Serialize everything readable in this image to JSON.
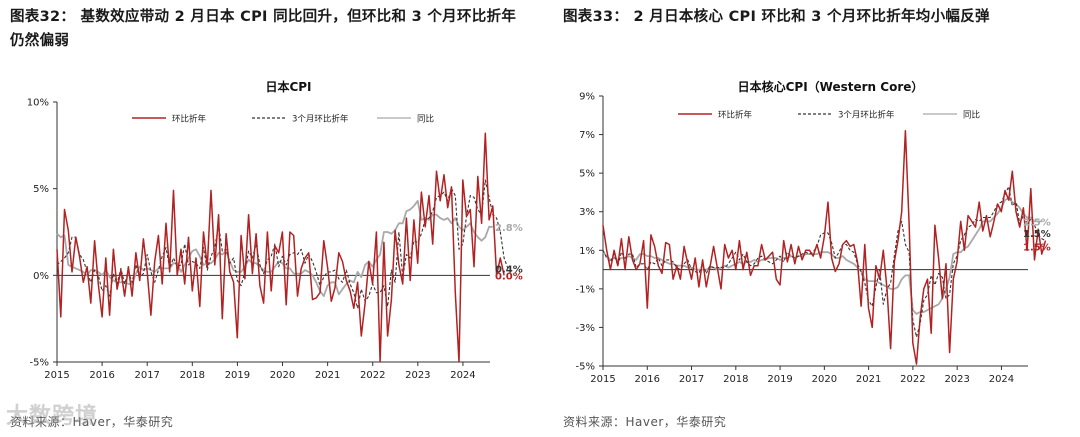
{
  "panels": [
    {
      "heading": "图表32：  基数效应带动 2 月日本 CPI 同比回升，但环比和 3 个月环比折年仍然偏弱",
      "source": "资料来源：Haver，华泰研究"
    },
    {
      "heading": "图表33：  2 月日本核心 CPI 环比和 3 个月环比折年均小幅反弹",
      "source": "资料来源：Haver，华泰研究"
    }
  ],
  "watermark": "大数跨境",
  "colors": {
    "mom": "#b22222",
    "three_month": "#333333",
    "yoy": "#a9a9a9",
    "axis": "#333333"
  },
  "chart_data": [
    {
      "type": "line",
      "title": "日本CPI",
      "ylim": [
        -5,
        10
      ],
      "yticks": [
        -5,
        0,
        5,
        10
      ],
      "ytick_labels": [
        "-5%",
        "0%",
        "5%",
        "10%"
      ],
      "xlim": [
        2015,
        2024.6
      ],
      "xticks": [
        2015,
        2016,
        2017,
        2018,
        2019,
        2020,
        2021,
        2022,
        2023,
        2024
      ],
      "xtick_labels": [
        "2015",
        "2016",
        "2017",
        "2018",
        "2019",
        "2020",
        "2021",
        "2022",
        "2023",
        "2024"
      ],
      "grid": false,
      "legend": "top",
      "series": [
        {
          "name": "环比折年",
          "key": "mom",
          "style": "solid",
          "x_start": 2015.0,
          "step": 0.0833,
          "values": [
            1.5,
            -2.4,
            3.8,
            2.6,
            0.2,
            2.2,
            1.1,
            -0.4,
            0.5,
            -1.6,
            2.0,
            -0.5,
            -2.4,
            1.0,
            -2.3,
            1.5,
            -0.8,
            0.3,
            -1.2,
            0.5,
            -1.2,
            1.3,
            -0.3,
            2.1,
            0.2,
            -2.3,
            0.8,
            2.3,
            -0.5,
            3.0,
            0.2,
            4.9,
            0.0,
            1.5,
            -0.5,
            2.2,
            -0.9,
            1.0,
            -1.8,
            2.5,
            0.5,
            4.9,
            0.6,
            3.5,
            -2.5,
            2.4,
            0.2,
            -0.4,
            -3.6,
            2.3,
            -0.2,
            3.5,
            0.1,
            2.4,
            -0.6,
            -1.6,
            2.5,
            -0.9,
            1.7,
            1.3,
            2.5,
            -1.7,
            2.5,
            2.3,
            -1.2,
            0.4,
            1.0,
            1.3,
            -1.4,
            -1.3,
            -1.0,
            2.0,
            0.5,
            -1.5,
            -0.7,
            1.3,
            0.8,
            -0.3,
            -0.9,
            -1.9,
            -0.4,
            -3.5,
            -1.6,
            0.8,
            -0.5,
            2.5,
            -5.0,
            1.9,
            -3.5,
            -1.4,
            2.6,
            0.6,
            -0.5,
            3.3,
            -0.3,
            3.2,
            0.7,
            4.8,
            2.8,
            4.6,
            1.8,
            6.0,
            4.3,
            5.8,
            3.9,
            5.1,
            -1.0,
            -5.0,
            5.5,
            3.4,
            3.8,
            0.5,
            5.7,
            3.0,
            8.2,
            3.2,
            4.0,
            0.0,
            1.0,
            0.0
          ]
        },
        {
          "name": "3个月环比折年",
          "key": "three_month",
          "style": "dashed",
          "x_start": 2015.0,
          "step": 0.0833,
          "values": [
            0.6,
            0.8,
            1.0,
            1.3,
            2.2,
            2.2,
            1.2,
            0.9,
            0.2,
            -0.4,
            0.3,
            0.0,
            -0.9,
            -0.6,
            -1.2,
            0.1,
            -0.5,
            0.4,
            -0.5,
            0.2,
            -0.4,
            0.6,
            -0.1,
            0.1,
            1.2,
            0.2,
            -0.4,
            0.3,
            1.1,
            1.6,
            0.4,
            1.0,
            0.5,
            0.6,
            1.8,
            0.6,
            0.8,
            0.7,
            0.4,
            1.6,
            0.3,
            1.1,
            1.6,
            2.9,
            1.4,
            1.5,
            0.7,
            1.0,
            -0.3,
            -0.6,
            0.2,
            1.4,
            1.0,
            1.8,
            0.6,
            0.1,
            0.9,
            1.1,
            1.8,
            0.5,
            1.1,
            0.6,
            1.2,
            1.3,
            1.2,
            1.5,
            0.7,
            1.2,
            0.8,
            0.2,
            -0.6,
            -0.1,
            0.2,
            0.2,
            0.3,
            -0.2,
            -0.4,
            0.3,
            -0.5,
            -1.0,
            -1.9,
            -0.8,
            -1.5,
            -1.2,
            -0.5,
            -1.0,
            -1.0,
            -0.6,
            -1.8,
            0.3,
            -0.4,
            2.5,
            -0.1,
            1.2,
            1.0,
            2.0,
            1.9,
            2.4,
            3.2,
            3.3,
            3.7,
            4.5,
            4.6,
            4.8,
            4.3,
            5.0,
            4.6,
            1.5,
            1.8,
            3.4,
            4.6,
            4.5,
            3.8,
            3.5,
            5.5,
            4.5,
            3.5,
            3.3,
            2.5,
            1.0,
            0.4
          ]
        },
        {
          "name": "同比",
          "key": "yoy",
          "style": "solid",
          "x_start": 2015.0,
          "step": 0.0833,
          "values": [
            2.4,
            2.2,
            2.3,
            0.6,
            0.5,
            0.4,
            0.3,
            0.2,
            0.0,
            0.3,
            0.3,
            0.2,
            0.0,
            0.3,
            -0.1,
            -0.3,
            -0.4,
            -0.4,
            -0.4,
            -0.5,
            -0.5,
            0.1,
            0.5,
            0.3,
            0.4,
            0.3,
            0.2,
            0.4,
            0.4,
            0.4,
            0.4,
            0.7,
            0.7,
            0.2,
            0.6,
            1.0,
            1.4,
            1.5,
            1.1,
            0.6,
            0.7,
            0.7,
            0.9,
            1.3,
            1.2,
            1.4,
            0.8,
            0.3,
            0.2,
            0.2,
            0.5,
            0.9,
            0.7,
            0.7,
            0.5,
            0.3,
            0.2,
            0.2,
            0.5,
            0.8,
            0.7,
            0.4,
            0.4,
            0.1,
            0.1,
            0.1,
            0.3,
            0.2,
            0.0,
            -0.4,
            -0.9,
            -1.2,
            -0.6,
            -0.4,
            -0.4,
            -1.1,
            -0.8,
            -0.5,
            -0.3,
            -0.4,
            0.2,
            -0.1,
            0.6,
            0.8,
            0.5,
            0.9,
            1.2,
            2.5,
            2.5,
            2.4,
            2.6,
            3.0,
            3.0,
            3.7,
            3.8,
            4.0,
            4.3,
            3.2,
            3.3,
            3.2,
            3.5,
            3.5,
            3.3,
            3.2,
            3.3,
            3.0,
            3.3,
            2.8,
            2.6,
            2.8,
            3.0,
            2.5,
            2.2,
            2.0,
            2.2,
            2.8,
            2.8
          ]
        }
      ],
      "annotations": [
        {
          "label": "2.8%",
          "value": 2.8,
          "color": "yoy"
        },
        {
          "label": "0.4%",
          "value": 0.4,
          "color": "three_month"
        },
        {
          "label": "0.0%",
          "value": 0.0,
          "color": "mom"
        }
      ]
    },
    {
      "type": "line",
      "title": "日本核心CPI（Western Core）",
      "ylim": [
        -5,
        9
      ],
      "yticks": [
        -5,
        -3,
        -1,
        1,
        3,
        5,
        7,
        9
      ],
      "ytick_labels": [
        "-5%",
        "-3%",
        "-1%",
        "1%",
        "3%",
        "5%",
        "7%",
        "9%"
      ],
      "xlim": [
        2015,
        2024.6
      ],
      "xticks": [
        2015,
        2016,
        2017,
        2018,
        2019,
        2020,
        2021,
        2022,
        2023,
        2024
      ],
      "xtick_labels": [
        "2015",
        "2016",
        "2017",
        "2018",
        "2019",
        "2020",
        "2021",
        "2022",
        "2023",
        "2024"
      ],
      "grid": false,
      "legend": "top",
      "series": [
        {
          "name": "环比折年",
          "key": "mom",
          "style": "solid",
          "x_start": 2015.0,
          "step": 0.0833,
          "values": [
            2.3,
            1.0,
            0.0,
            1.0,
            0.2,
            1.6,
            0.0,
            1.7,
            0.5,
            0.0,
            0.3,
            1.5,
            -2.0,
            1.8,
            1.2,
            0.2,
            -0.2,
            1.4,
            1.3,
            -0.5,
            0.2,
            -0.5,
            1.2,
            0.3,
            -0.5,
            0.6,
            -0.9,
            0.5,
            -0.9,
            0.1,
            1.2,
            0.1,
            -1.0,
            1.3,
            0.6,
            1.0,
            0.0,
            1.5,
            0.0,
            0.9,
            -0.3,
            0.2,
            0.2,
            1.3,
            0.5,
            0.7,
            0.9,
            -0.5,
            -0.8,
            1.5,
            0.4,
            1.3,
            0.3,
            1.2,
            0.5,
            1.0,
            1.0,
            0.7,
            1.3,
            0.6,
            1.7,
            3.5,
            0.6,
            -0.1,
            0.3,
            1.3,
            1.5,
            1.2,
            1.3,
            0.4,
            -1.9,
            1.3,
            -2.0,
            -3.0,
            0.2,
            -0.5,
            1.0,
            -1.0,
            -4.1,
            0.4,
            1.5,
            3.0,
            7.2,
            2.4,
            -3.8,
            -4.9,
            -2.5,
            -1.0,
            -0.5,
            -3.3,
            2.3,
            0.6,
            -1.5,
            0.3,
            -4.3,
            -0.5,
            0.4,
            2.5,
            1.0,
            2.8,
            2.5,
            2.2,
            3.5,
            2.0,
            2.8,
            1.7,
            2.5,
            3.4,
            3.0,
            4.1,
            3.6,
            5.1,
            3.0,
            2.2,
            3.2,
            1.0,
            4.2,
            0.5,
            2.1,
            0.8,
            1.5
          ]
        },
        {
          "name": "3个月环比折年",
          "key": "three_month",
          "style": "dashed",
          "x_start": 2015.0,
          "step": 0.0833,
          "values": [
            1.0,
            0.6,
            0.4,
            0.8,
            0.2,
            0.9,
            0.6,
            0.8,
            0.8,
            0.1,
            0.3,
            0.3,
            0.0,
            0.4,
            0.3,
            0.6,
            0.2,
            0.5,
            0.5,
            0.4,
            0.1,
            0.0,
            0.3,
            0.5,
            0.0,
            -0.1,
            -0.2,
            0.3,
            -0.2,
            0.2,
            0.1,
            0.1,
            0.1,
            0.1,
            0.3,
            0.6,
            0.9,
            0.5,
            0.8,
            0.4,
            0.2,
            0.3,
            0.6,
            0.7,
            0.5,
            0.4,
            0.3,
            0.5,
            0.7,
            0.4,
            0.9,
            0.7,
            0.6,
            0.7,
            0.8,
            0.9,
            0.8,
            0.9,
            1.2,
            1.8,
            1.9,
            1.9,
            1.4,
            0.6,
            0.9,
            1.3,
            1.3,
            1.0,
            0.9,
            0.3,
            -0.1,
            -0.7,
            -1.6,
            -1.9,
            -0.9,
            0.0,
            -1.8,
            -1.0,
            -0.7,
            0.7,
            2.0,
            2.5,
            1.3,
            0.9,
            -2.6,
            -3.5,
            -2.8,
            -1.6,
            -1.3,
            -0.3,
            -0.8,
            -0.2,
            -0.4,
            -1.5,
            -1.3,
            0.3,
            0.7,
            1.5,
            1.8,
            2.2,
            2.3,
            2.6,
            2.5,
            2.7,
            2.7,
            2.7,
            3.0,
            3.4,
            3.5,
            3.9,
            4.3,
            3.3,
            3.5,
            2.4,
            2.8,
            2.4,
            2.6,
            2.3,
            1.8,
            1.6,
            1.5
          ]
        },
        {
          "name": "同比",
          "key": "yoy",
          "style": "solid",
          "x_start": 2015.0,
          "step": 0.0833,
          "values": [
            0.9,
            0.7,
            0.5,
            0.6,
            0.5,
            0.6,
            0.6,
            0.7,
            0.6,
            0.5,
            0.8,
            0.8,
            0.7,
            0.7,
            0.6,
            0.6,
            0.5,
            0.4,
            0.3,
            0.3,
            0.2,
            0.2,
            0.2,
            0.1,
            0.1,
            0.0,
            0.0,
            0.0,
            0.0,
            0.1,
            0.1,
            0.0,
            0.1,
            0.2,
            0.1,
            0.2,
            0.3,
            0.4,
            0.3,
            0.4,
            0.4,
            0.5,
            0.4,
            0.5,
            0.5,
            0.6,
            0.6,
            0.6,
            0.5,
            0.6,
            0.6,
            0.7,
            0.6,
            0.7,
            0.7,
            0.8,
            0.8,
            0.8,
            0.8,
            0.9,
            0.9,
            0.9,
            0.8,
            0.6,
            0.6,
            0.7,
            0.5,
            0.4,
            0.3,
            0.1,
            -0.1,
            -0.5,
            -0.6,
            -0.6,
            -0.6,
            -0.7,
            -0.8,
            -0.9,
            -1.0,
            -1.0,
            -0.9,
            -0.5,
            -0.3,
            -0.3,
            -2.1,
            -2.3,
            -2.2,
            -2.2,
            -2.1,
            -2.0,
            -1.9,
            -1.8,
            -1.5,
            -1.0,
            -0.4,
            0.8,
            0.9,
            0.9,
            1.1,
            1.2,
            1.5,
            1.8,
            2.1,
            2.5,
            2.5,
            2.5,
            2.7,
            2.9,
            3.2,
            3.6,
            3.7,
            3.5,
            3.4,
            3.2,
            2.9,
            2.7,
            2.7,
            2.5,
            2.5,
            2.5
          ]
        }
      ],
      "annotations": [
        {
          "label": "2.5%",
          "value": 2.5,
          "color": "yoy"
        },
        {
          "label": "1.5%",
          "value": 1.9,
          "color": "three_month"
        },
        {
          "label": "1.5%",
          "value": 1.2,
          "color": "mom"
        }
      ]
    }
  ]
}
